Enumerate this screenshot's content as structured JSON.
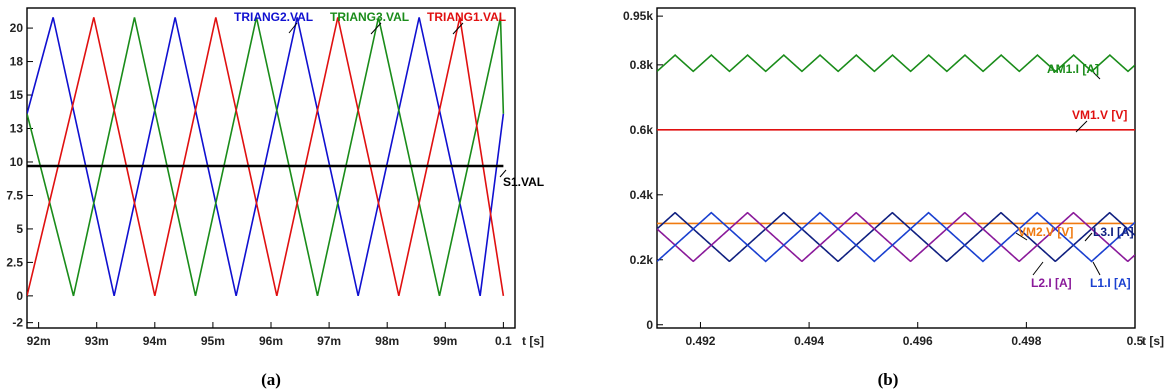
{
  "chart_data": [
    {
      "type": "line",
      "caption": "(a)",
      "x_unit_label": "t [s]",
      "xlim": [
        0.0918,
        0.1002
      ],
      "ylim": [
        -2.4,
        21.5
      ],
      "x_ticks": [
        {
          "value": 0.092,
          "label": "92m"
        },
        {
          "value": 0.093,
          "label": "93m"
        },
        {
          "value": 0.094,
          "label": "94m"
        },
        {
          "value": 0.095,
          "label": "95m"
        },
        {
          "value": 0.096,
          "label": "96m"
        },
        {
          "value": 0.097,
          "label": "97m"
        },
        {
          "value": 0.098,
          "label": "98m"
        },
        {
          "value": 0.099,
          "label": "99m"
        },
        {
          "value": 0.1,
          "label": "0.1"
        }
      ],
      "y_ticks": [
        {
          "value": 20,
          "label": "20"
        },
        {
          "value": 17.5,
          "label": "18"
        },
        {
          "value": 15,
          "label": "15"
        },
        {
          "value": 12.5,
          "label": "13"
        },
        {
          "value": 10,
          "label": "10"
        },
        {
          "value": 7.5,
          "label": "7.5"
        },
        {
          "value": 5,
          "label": "5"
        },
        {
          "value": 2.5,
          "label": "2.5"
        },
        {
          "value": 0,
          "label": "0"
        },
        {
          "value": -2,
          "label": "-2"
        }
      ],
      "series": [
        {
          "name": "TRIANG2.VAL",
          "color": "#1010d0",
          "x": [
            0.0918,
            0.09225,
            0.0933,
            0.09435,
            0.0954,
            0.09645,
            0.0975,
            0.09855,
            0.0996,
            0.1
          ],
          "y": [
            13.6,
            20.8,
            0,
            20.8,
            0,
            20.8,
            0,
            20.8,
            0,
            13.6
          ]
        },
        {
          "name": "TRIANG3.VAL",
          "color": "#1a8c1a",
          "x": [
            0.0918,
            0.0926,
            0.09365,
            0.0947,
            0.09575,
            0.0968,
            0.09785,
            0.0989,
            0.09995,
            0.1
          ],
          "y": [
            13.6,
            0,
            20.8,
            0,
            20.8,
            0,
            20.8,
            0,
            20.8,
            13.6
          ]
        },
        {
          "name": "TRIANG1.VAL",
          "color": "#e01010",
          "x": [
            0.0918,
            0.09295,
            0.094,
            0.09505,
            0.0961,
            0.09715,
            0.0982,
            0.09925,
            0.1
          ],
          "y": [
            0,
            20.8,
            0,
            20.8,
            0,
            20.8,
            0,
            20.8,
            0
          ]
        },
        {
          "name": "S1.VAL",
          "color": "#000000",
          "x": [
            0.0918,
            0.1
          ],
          "y": [
            9.7,
            9.7
          ]
        }
      ],
      "legend_labels": [
        {
          "name": "TRIANG2.VAL",
          "color": "#1010d0"
        },
        {
          "name": "TRIANG3.VAL",
          "color": "#1a8c1a"
        },
        {
          "name": "TRIANG1.VAL",
          "color": "#e01010"
        },
        {
          "name": "S1.VAL",
          "color": "#000000"
        }
      ]
    },
    {
      "type": "line",
      "caption": "(b)",
      "x_unit_label": "t [s]",
      "xlim": [
        0.4912,
        0.5
      ],
      "ylim": [
        -10,
        975
      ],
      "x_ticks": [
        {
          "value": 0.492,
          "label": "0.492"
        },
        {
          "value": 0.494,
          "label": "0.494"
        },
        {
          "value": 0.496,
          "label": "0.496"
        },
        {
          "value": 0.498,
          "label": "0.498"
        },
        {
          "value": 0.5,
          "label": "0.5"
        }
      ],
      "y_ticks": [
        {
          "value": 950,
          "label": "0.95k"
        },
        {
          "value": 800,
          "label": "0.8k"
        },
        {
          "value": 600,
          "label": "0.6k"
        },
        {
          "value": 400,
          "label": "0.4k"
        },
        {
          "value": 200,
          "label": "0.2k"
        },
        {
          "value": 0,
          "label": "0"
        }
      ],
      "series": [
        {
          "name": "AM1.I [A]",
          "color": "#1a8c1a",
          "x0": 0.4912,
          "x1": 0.5,
          "center": 805,
          "amplitude": 25,
          "period": 0.000667,
          "phase": 0.0,
          "wave": "triangle"
        },
        {
          "name": "VM1.V [V]",
          "color": "#e01010",
          "x": [
            0.4912,
            0.5
          ],
          "y": [
            600,
            600
          ]
        },
        {
          "name": "VM2.V [V]",
          "color": "#f07a10",
          "x": [
            0.4912,
            0.5
          ],
          "y": [
            312,
            312
          ]
        },
        {
          "name": "L3.I [A]",
          "color": "#102080",
          "x0": 0.4912,
          "x1": 0.5,
          "center": 270,
          "amplitude": 75,
          "period": 0.002,
          "phase": 0.000667,
          "wave": "triangle"
        },
        {
          "name": "L2.I [A]",
          "color": "#8a1a9a",
          "x0": 0.4912,
          "x1": 0.5,
          "center": 270,
          "amplitude": 75,
          "period": 0.002,
          "phase": 0.001333,
          "wave": "triangle"
        },
        {
          "name": "L1.I [A]",
          "color": "#1a40d0",
          "x0": 0.4912,
          "x1": 0.5,
          "center": 270,
          "amplitude": 75,
          "period": 0.002,
          "phase": 0.0,
          "wave": "triangle"
        }
      ],
      "legend_labels": [
        {
          "name": "AM1.I [A]",
          "color": "#1a8c1a"
        },
        {
          "name": "VM1.V [V]",
          "color": "#e01010"
        },
        {
          "name": "VM2.V [V]",
          "color": "#f07a10"
        },
        {
          "name": "L3.I [A]",
          "color": "#102080"
        },
        {
          "name": "L2.I [A]",
          "color": "#8a1a9a"
        },
        {
          "name": "L1.I [A]",
          "color": "#1a40d0"
        }
      ]
    }
  ]
}
